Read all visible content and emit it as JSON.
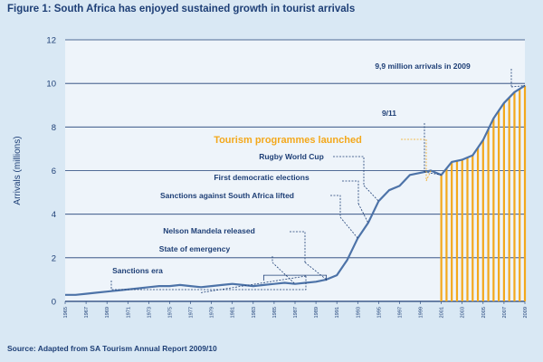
{
  "title": "Figure 1: South Africa has enjoyed sustained growth in tourist arrivals",
  "source": "Source: Adapted from SA Tourism Annual Report 2009/10",
  "colors": {
    "background": "#d9e8f4",
    "plot": "#eef4fa",
    "text": "#1e3f76",
    "grid": "#1e3f76",
    "line": "#4d73a8",
    "highlight": "#f3a81c"
  },
  "chart_data": {
    "type": "line",
    "title": "Figure 1: South Africa has enjoyed sustained growth in tourist arrivals",
    "xlabel": "",
    "ylabel": "Arrivals (millions)",
    "xlim": [
      1965,
      2009
    ],
    "ylim": [
      0,
      12
    ],
    "yticks": [
      0,
      2,
      4,
      6,
      8,
      10,
      12
    ],
    "xticks": [
      "1965",
      "1967",
      "1969",
      "1971",
      "1973",
      "1975",
      "1977",
      "1979",
      "1981",
      "1983",
      "1985",
      "1987",
      "1989",
      "1991",
      "1993",
      "1995",
      "1997",
      "1999",
      "2001",
      "2003",
      "2005",
      "2007",
      "2009"
    ],
    "grid": true,
    "x": [
      1965,
      1966,
      1967,
      1968,
      1969,
      1970,
      1971,
      1972,
      1973,
      1974,
      1975,
      1976,
      1977,
      1978,
      1979,
      1980,
      1981,
      1982,
      1983,
      1984,
      1985,
      1986,
      1987,
      1988,
      1989,
      1990,
      1991,
      1992,
      1993,
      1994,
      1995,
      1996,
      1997,
      1998,
      1999,
      2000,
      2001,
      2002,
      2003,
      2004,
      2005,
      2006,
      2007,
      2008,
      2009
    ],
    "y": [
      0.3,
      0.3,
      0.35,
      0.4,
      0.45,
      0.5,
      0.55,
      0.6,
      0.65,
      0.7,
      0.7,
      0.75,
      0.7,
      0.65,
      0.7,
      0.75,
      0.8,
      0.75,
      0.7,
      0.75,
      0.8,
      0.85,
      0.8,
      0.85,
      0.9,
      1.0,
      1.2,
      1.9,
      2.9,
      3.6,
      4.6,
      5.1,
      5.3,
      5.8,
      5.9,
      6.0,
      5.8,
      6.4,
      6.5,
      6.7,
      7.4,
      8.4,
      9.1,
      9.6,
      9.9
    ],
    "highlight_from": 2001,
    "annotations": [
      {
        "text": "9,9 million arrivals in 2009",
        "x": 2009,
        "y": 9.9,
        "style": "normal"
      },
      {
        "text": "9/11",
        "x": 2001,
        "y": 5.8,
        "style": "normal"
      },
      {
        "text": "Tourism programmes launched",
        "x": 2000,
        "y": 6.0,
        "style": "highlight"
      },
      {
        "text": "Rugby World Cup",
        "x": 1995,
        "y": 4.6,
        "style": "normal"
      },
      {
        "text": "First democratic elections",
        "x": 1994,
        "y": 3.6,
        "style": "normal"
      },
      {
        "text": "Sanctions against South Africa lifted",
        "x": 1993,
        "y": 2.9,
        "style": "normal"
      },
      {
        "text": "Nelson Mandela released",
        "x": 1990,
        "y": 1.0,
        "style": "normal"
      },
      {
        "text": "State of emergency",
        "x": 1987,
        "y": 0.8,
        "style": "normal"
      },
      {
        "text": "Sanctions era",
        "x": 1978,
        "y": 0.4,
        "style": "normal"
      }
    ]
  }
}
